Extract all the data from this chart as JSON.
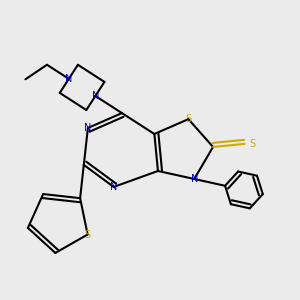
{
  "bg_color": "#ebebeb",
  "bond_color": "#000000",
  "N_color": "#0000cc",
  "S_color": "#ccaa00",
  "lw": 1.5,
  "dbo": 0.06,
  "xlim": [
    -2.2,
    2.2
  ],
  "ylim": [
    -2.2,
    2.2
  ]
}
